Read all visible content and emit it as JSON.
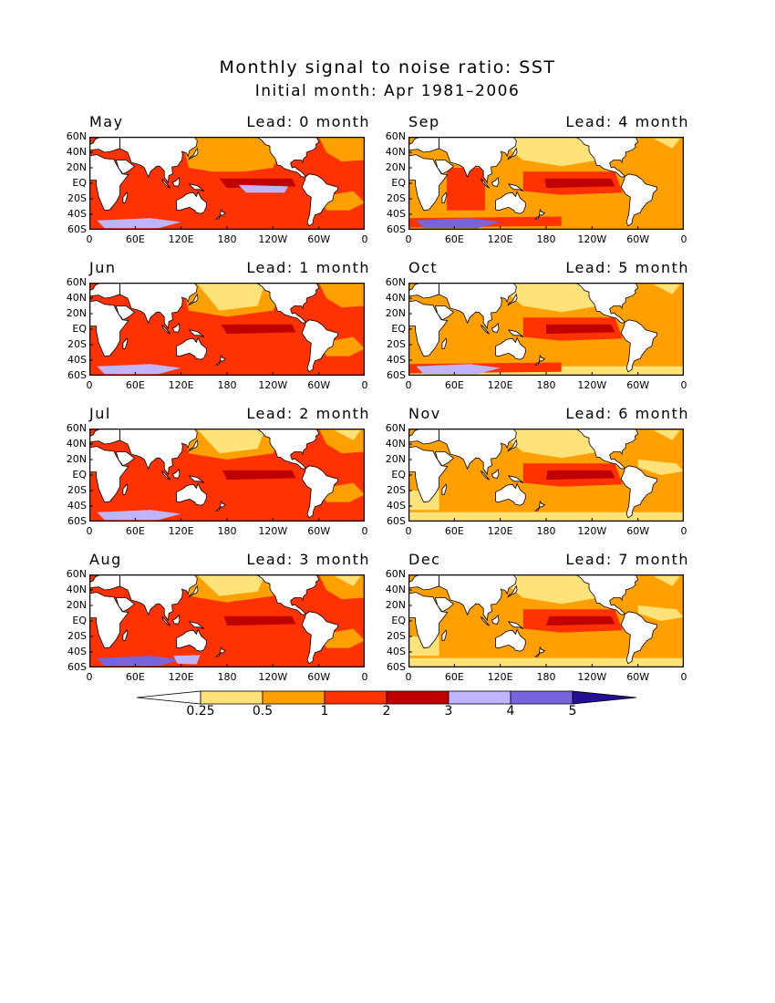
{
  "title": "Monthly signal to noise ratio: SST",
  "subtitle": "Initial month: Apr 1981–2006",
  "panels": [
    {
      "month": "May",
      "lead": "Lead: 0 month",
      "col": 0,
      "row": 0,
      "level": 0
    },
    {
      "month": "Jun",
      "lead": "Lead: 1 month",
      "col": 0,
      "row": 1,
      "level": 1
    },
    {
      "month": "Jul",
      "lead": "Lead: 2 month",
      "col": 0,
      "row": 2,
      "level": 2
    },
    {
      "month": "Aug",
      "lead": "Lead: 3 month",
      "col": 0,
      "row": 3,
      "level": 3
    },
    {
      "month": "Sep",
      "lead": "Lead: 4 month",
      "col": 1,
      "row": 0,
      "level": 4
    },
    {
      "month": "Oct",
      "lead": "Lead: 5 month",
      "col": 1,
      "row": 1,
      "level": 5
    },
    {
      "month": "Nov",
      "lead": "Lead: 6 month",
      "col": 1,
      "row": 2,
      "level": 6
    },
    {
      "month": "Dec",
      "lead": "Lead: 7 month",
      "col": 1,
      "row": 3,
      "level": 7
    }
  ],
  "lat_ticks": [
    "60N",
    "40N",
    "20N",
    "EQ",
    "20S",
    "40S",
    "60S"
  ],
  "lon_ticks": [
    "0",
    "60E",
    "120E",
    "180",
    "120W",
    "60W",
    "0"
  ],
  "colorbar": {
    "levels": [
      "0.25",
      "0.5",
      "1",
      "2",
      "3",
      "4",
      "5"
    ],
    "colors": [
      "#ffffff",
      "#ffe278",
      "#ffa000",
      "#ff3200",
      "#c00000",
      "#beb4ff",
      "#7864dc",
      "#230f96"
    ]
  },
  "land_color": "#ffffff"
}
